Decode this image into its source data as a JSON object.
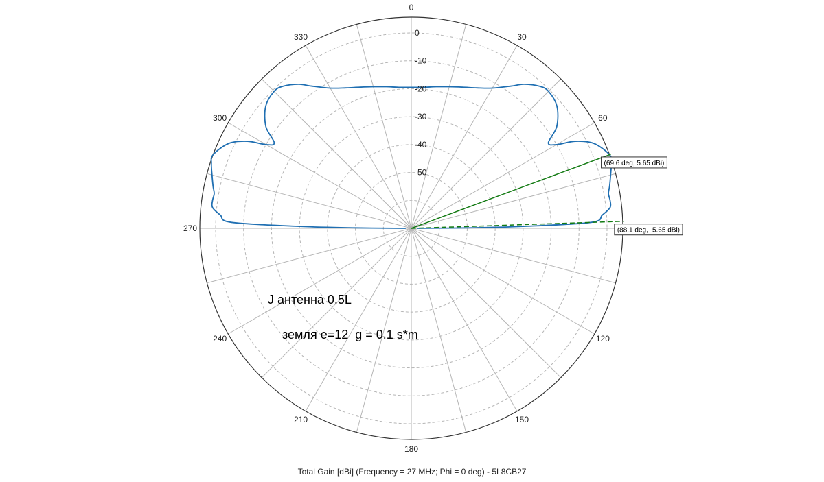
{
  "chart_data": {
    "type": "polar-line",
    "title": "Total Gain [dBi] (Frequency = 27 MHz; Phi = 0 deg) - 5L8CB27",
    "angle_direction": "clockwise",
    "angle_zero": "top",
    "angle_ticks": [
      0,
      30,
      60,
      120,
      150,
      180,
      210,
      240,
      270,
      300,
      330
    ],
    "radial_range": [
      -70,
      5.65
    ],
    "radial_ticks": [
      0,
      -10,
      -20,
      -30,
      -40,
      -50
    ],
    "grid": true,
    "series": [
      {
        "color": "#1f6fb2",
        "theta_deg": [
          0,
          5,
          10,
          15,
          20,
          25,
          30,
          35,
          38,
          42,
          45,
          50,
          55,
          58,
          60,
          62,
          65,
          69.6,
          72,
          75,
          78,
          80,
          82,
          84,
          86,
          88.1,
          89,
          89.5,
          90
        ],
        "gain_dbi": [
          -19.5,
          -19.3,
          -18.5,
          -17.5,
          -16.2,
          -14.5,
          -12.0,
          -7.8,
          -4.5,
          -1.5,
          -0.6,
          -2.0,
          -6.5,
          -12.2,
          -10.0,
          -3.6,
          2.0,
          5.65,
          5.2,
          3.8,
          2.5,
          1.6,
          1.8,
          1.5,
          -1.5,
          -5.65,
          -30,
          -50,
          -68
        ]
      },
      {
        "color": "#1f6fb2",
        "theta_deg": [
          270,
          270.5,
          271,
          271.9,
          274,
          276,
          278,
          280,
          282,
          285,
          288,
          290.4,
          295,
          298,
          300,
          302,
          305,
          310,
          315,
          318,
          322,
          325,
          330,
          335,
          340,
          345,
          350,
          355,
          360
        ],
        "gain_dbi": [
          -68,
          -50,
          -30,
          -5.65,
          -1.5,
          1.5,
          1.8,
          1.6,
          2.5,
          3.8,
          5.2,
          5.65,
          2.0,
          -3.6,
          -10.0,
          -12.2,
          -6.5,
          -2.0,
          -0.6,
          -1.5,
          -4.5,
          -7.8,
          -12.0,
          -14.5,
          -16.2,
          -17.5,
          -18.5,
          -19.3,
          -19.5
        ]
      }
    ],
    "markers": [
      {
        "theta_deg": 69.6,
        "gain_dbi": 5.65,
        "label": "(69.6 deg, 5.65 dBi)",
        "color": "#127a12",
        "style": "solid"
      },
      {
        "theta_deg": 88.1,
        "gain_dbi": -5.65,
        "label": "(88.1 deg, -5.65 dBi)",
        "color": "#127a12",
        "style": "dashed"
      }
    ],
    "annotations": [
      {
        "text": "J антенна 0.5L"
      },
      {
        "text": "земля e=12  g = 0.1 s*m"
      }
    ]
  },
  "colors": {
    "grid": "#b5b5b5",
    "outer_ring": "#333333",
    "curve": "#1f6fb2",
    "marker": "#127a12"
  }
}
